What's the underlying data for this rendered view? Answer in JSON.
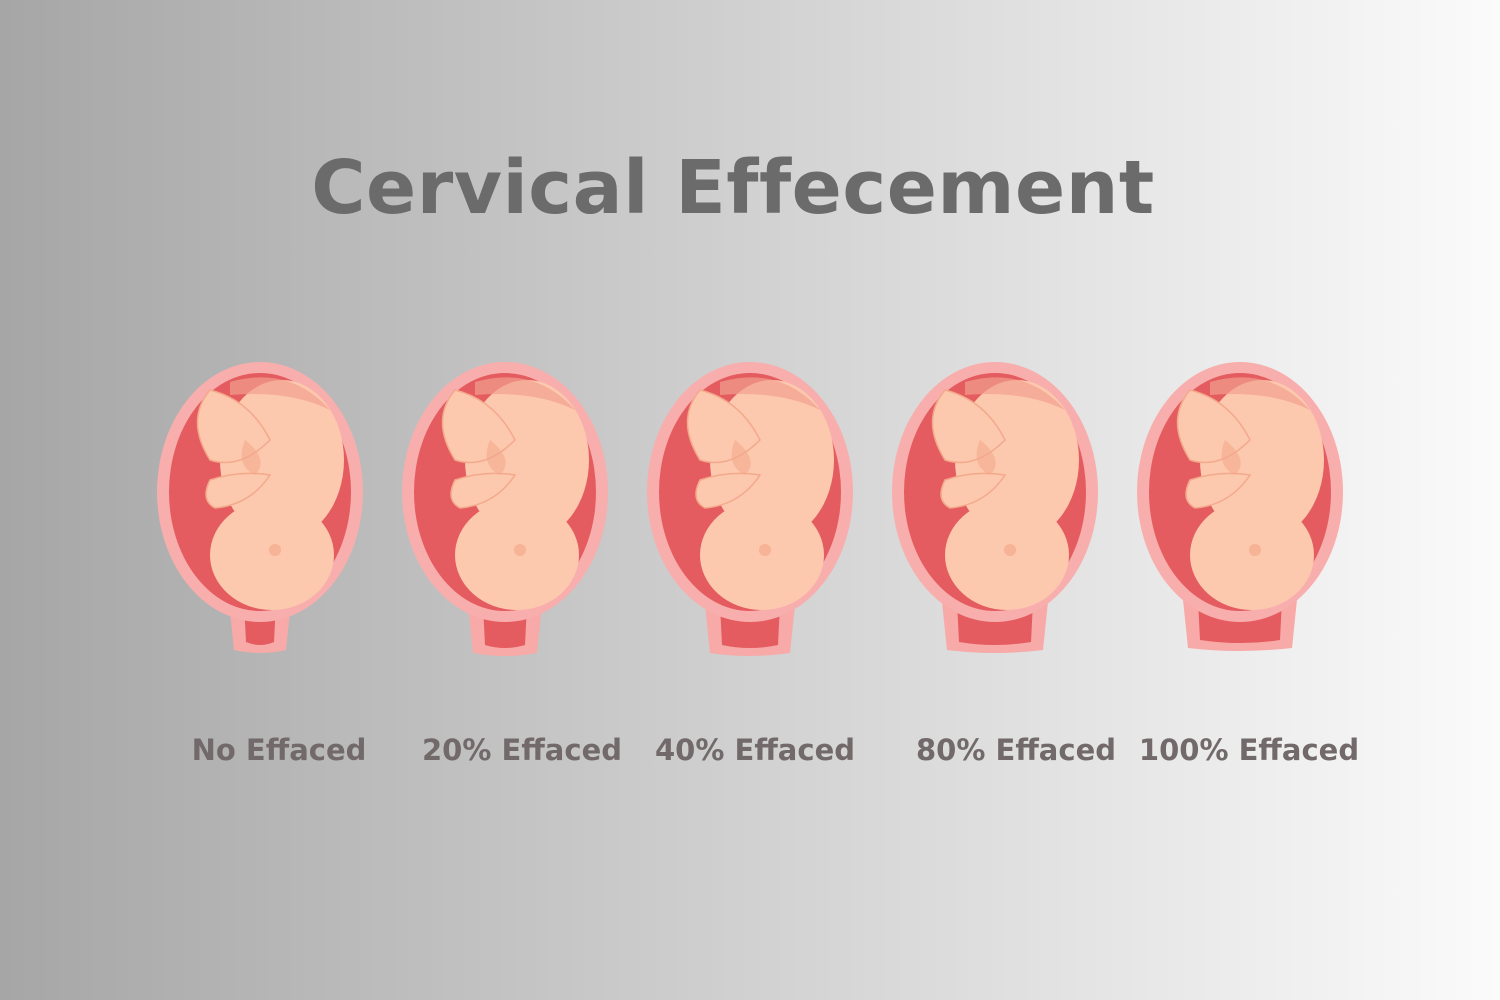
{
  "title": "Cervical Effecement",
  "stages": [
    {
      "label": "No Effaced"
    },
    {
      "label": "20% Effaced"
    },
    {
      "label": "40% Effaced"
    },
    {
      "label": "80% Effaced"
    },
    {
      "label": "100% Effaced"
    }
  ]
}
